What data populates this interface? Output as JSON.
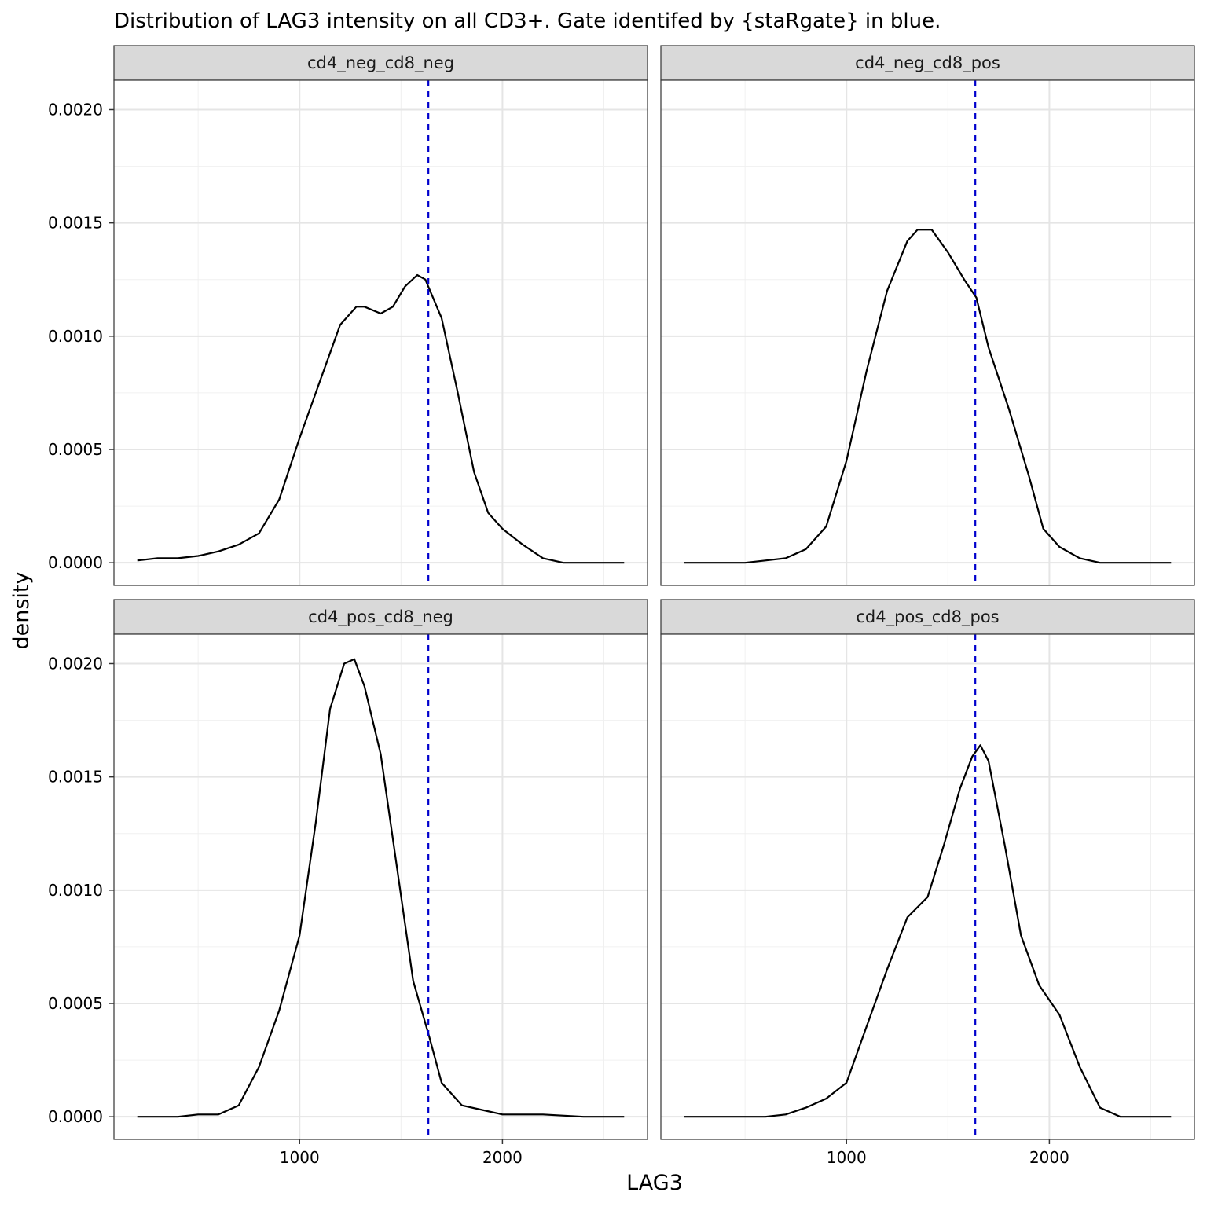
{
  "chart_data": {
    "type": "line",
    "title": "Distribution of LAG3 intensity on all CD3+. Gate identifed by {staRgate} in blue.",
    "xlabel": "LAG3",
    "ylabel": "density",
    "xlim": [
      85,
      2715
    ],
    "ylim": [
      -0.0001,
      0.00213
    ],
    "x_ticks": [
      1000,
      2000
    ],
    "x_tick_labels": [
      "1000",
      "2000"
    ],
    "y_ticks": [
      0,
      0.0005,
      0.001,
      0.0015,
      0.002
    ],
    "y_tick_labels": [
      "0.0000",
      "0.0005",
      "0.0010",
      "0.0015",
      "0.0020"
    ],
    "grid": true,
    "gate": {
      "x": 1635,
      "color": "#0000cc",
      "style": "dashed"
    },
    "line_color": "#000000",
    "panels": [
      {
        "name": "cd4_neg_cd8_neg",
        "points": [
          [
            200,
            1e-05
          ],
          [
            300,
            2e-05
          ],
          [
            400,
            2e-05
          ],
          [
            500,
            3e-05
          ],
          [
            600,
            5e-05
          ],
          [
            700,
            8e-05
          ],
          [
            800,
            0.00013
          ],
          [
            900,
            0.00028
          ],
          [
            1000,
            0.00055
          ],
          [
            1100,
            0.0008
          ],
          [
            1200,
            0.00105
          ],
          [
            1280,
            0.00113
          ],
          [
            1320,
            0.00113
          ],
          [
            1400,
            0.0011
          ],
          [
            1460,
            0.00113
          ],
          [
            1520,
            0.00122
          ],
          [
            1580,
            0.00127
          ],
          [
            1620,
            0.00125
          ],
          [
            1700,
            0.00108
          ],
          [
            1780,
            0.00075
          ],
          [
            1860,
            0.0004
          ],
          [
            1930,
            0.00022
          ],
          [
            2000,
            0.00015
          ],
          [
            2100,
            8e-05
          ],
          [
            2200,
            2e-05
          ],
          [
            2300,
            0.0
          ],
          [
            2400,
            0.0
          ],
          [
            2500,
            0.0
          ],
          [
            2600,
            0.0
          ]
        ]
      },
      {
        "name": "cd4_neg_cd8_pos",
        "points": [
          [
            200,
            0.0
          ],
          [
            300,
            0.0
          ],
          [
            400,
            0.0
          ],
          [
            500,
            0.0
          ],
          [
            600,
            1e-05
          ],
          [
            700,
            2e-05
          ],
          [
            800,
            6e-05
          ],
          [
            900,
            0.00016
          ],
          [
            1000,
            0.00045
          ],
          [
            1100,
            0.00085
          ],
          [
            1200,
            0.0012
          ],
          [
            1300,
            0.00142
          ],
          [
            1350,
            0.00147
          ],
          [
            1420,
            0.00147
          ],
          [
            1500,
            0.00137
          ],
          [
            1580,
            0.00125
          ],
          [
            1640,
            0.00117
          ],
          [
            1700,
            0.00095
          ],
          [
            1800,
            0.00068
          ],
          [
            1900,
            0.00038
          ],
          [
            1970,
            0.00015
          ],
          [
            2050,
            7e-05
          ],
          [
            2150,
            2e-05
          ],
          [
            2250,
            0.0
          ],
          [
            2400,
            0.0
          ],
          [
            2600,
            0.0
          ]
        ]
      },
      {
        "name": "cd4_pos_cd8_neg",
        "points": [
          [
            200,
            0.0
          ],
          [
            300,
            0.0
          ],
          [
            400,
            0.0
          ],
          [
            500,
            1e-05
          ],
          [
            600,
            1e-05
          ],
          [
            700,
            5e-05
          ],
          [
            800,
            0.00022
          ],
          [
            900,
            0.00047
          ],
          [
            1000,
            0.0008
          ],
          [
            1080,
            0.0013
          ],
          [
            1150,
            0.0018
          ],
          [
            1220,
            0.002
          ],
          [
            1270,
            0.00202
          ],
          [
            1320,
            0.0019
          ],
          [
            1400,
            0.0016
          ],
          [
            1480,
            0.0011
          ],
          [
            1560,
            0.0006
          ],
          [
            1640,
            0.00035
          ],
          [
            1700,
            0.00015
          ],
          [
            1800,
            5e-05
          ],
          [
            1900,
            3e-05
          ],
          [
            2000,
            1e-05
          ],
          [
            2200,
            1e-05
          ],
          [
            2400,
            0.0
          ],
          [
            2600,
            0.0
          ]
        ]
      },
      {
        "name": "cd4_pos_cd8_pos",
        "points": [
          [
            200,
            0.0
          ],
          [
            300,
            0.0
          ],
          [
            400,
            0.0
          ],
          [
            500,
            0.0
          ],
          [
            600,
            0.0
          ],
          [
            700,
            1e-05
          ],
          [
            800,
            4e-05
          ],
          [
            900,
            8e-05
          ],
          [
            1000,
            0.00015
          ],
          [
            1100,
            0.0004
          ],
          [
            1200,
            0.00065
          ],
          [
            1300,
            0.00088
          ],
          [
            1400,
            0.00097
          ],
          [
            1480,
            0.0012
          ],
          [
            1560,
            0.00145
          ],
          [
            1620,
            0.00159
          ],
          [
            1660,
            0.00164
          ],
          [
            1700,
            0.00157
          ],
          [
            1780,
            0.0012
          ],
          [
            1860,
            0.0008
          ],
          [
            1950,
            0.00058
          ],
          [
            2050,
            0.00045
          ],
          [
            2150,
            0.00022
          ],
          [
            2250,
            4e-05
          ],
          [
            2350,
            0.0
          ],
          [
            2500,
            0.0
          ],
          [
            2600,
            0.0
          ]
        ]
      }
    ]
  }
}
